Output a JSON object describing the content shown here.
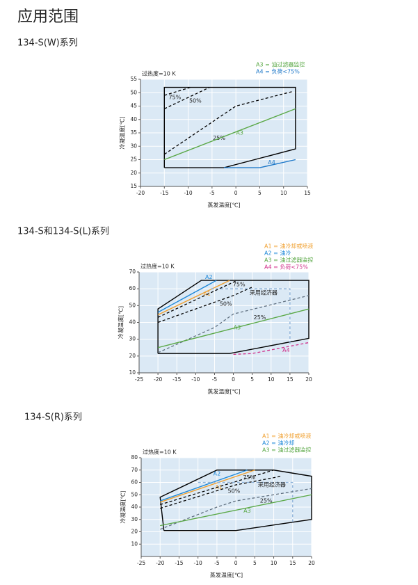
{
  "title": "应用范围",
  "chart_data": [
    {
      "type": "line",
      "title": "134-S(W)系列",
      "annotation": "过热度=10 K",
      "xlabel": "蒸发温度[℃]",
      "ylabel": "冷凝温度[℃]",
      "xlim": [
        -20,
        15
      ],
      "xticks": [
        -20,
        -15,
        -10,
        -5,
        0,
        5,
        10,
        15
      ],
      "ylim": [
        15,
        55
      ],
      "yticks": [
        15,
        20,
        25,
        30,
        35,
        40,
        45,
        50,
        55
      ],
      "grid": true,
      "series": [
        {
          "color": "#000000",
          "x": [
            -15,
            -15,
            12.5,
            12.5,
            -2.5,
            -15
          ],
          "values": [
            22,
            52,
            52,
            29,
            22,
            22
          ]
        },
        {
          "color": "#000000",
          "dash": true,
          "label": "75%",
          "x": [
            -15,
            -9.5
          ],
          "values": [
            49,
            52
          ]
        },
        {
          "color": "#000000",
          "dash": true,
          "label": "50%",
          "x": [
            -15,
            -5.5
          ],
          "values": [
            44,
            52
          ]
        },
        {
          "color": "#000000",
          "dash": true,
          "label": "25%",
          "x": [
            -15,
            0,
            12
          ],
          "values": [
            27,
            45,
            50.5
          ]
        },
        {
          "name": "A3 = 油过滤器监控",
          "label": "A3",
          "color": "#5aa846",
          "x": [
            -15,
            12.5
          ],
          "values": [
            25,
            44
          ]
        },
        {
          "name": "A4 = 负荷<75%",
          "label": "A4",
          "color": "#1e78c8",
          "x": [
            -2.5,
            5,
            12.5
          ],
          "values": [
            22,
            22,
            25
          ]
        }
      ]
    },
    {
      "type": "line",
      "title": "134-S和134-S(L)系列",
      "annotation": "过热度=10 K",
      "xlabel": "蒸发温度[℃]",
      "ylabel": "冷凝温度[℃]",
      "xlim": [
        -25,
        20
      ],
      "xticks": [
        -25,
        -20,
        -15,
        -10,
        -5,
        0,
        5,
        10,
        15,
        20
      ],
      "ylim": [
        10,
        70
      ],
      "yticks": [
        10,
        20,
        30,
        40,
        50,
        60,
        70
      ],
      "grid": true,
      "series": [
        {
          "color": "#000000",
          "x": [
            -20,
            -20,
            -8.5,
            20,
            20,
            -1,
            -20
          ],
          "values": [
            21.5,
            48,
            65,
            65,
            30.5,
            21.5,
            21.5
          ]
        },
        {
          "name": "A1 = 油冷却或喷液",
          "label": "A1",
          "color": "#f0a030",
          "x": [
            -20,
            -1
          ],
          "values": [
            44.5,
            65
          ]
        },
        {
          "name": "A2 = 油冷",
          "label": "A2",
          "color": "#1e88d8",
          "x": [
            -20,
            -4.5
          ],
          "values": [
            46,
            65
          ]
        },
        {
          "color": "#000000",
          "dash": true,
          "label": "75%",
          "x": [
            -20,
            1
          ],
          "values": [
            43,
            65
          ]
        },
        {
          "color": "#000000",
          "dash": true,
          "label": "50%",
          "x": [
            -20,
            0,
            5
          ],
          "values": [
            40,
            56,
            61
          ]
        },
        {
          "color": "#8ab0d8",
          "dash": true,
          "label": "采用经济器",
          "x": [
            -6,
            15,
            15
          ],
          "values": [
            60,
            60,
            27
          ]
        },
        {
          "color": "#607080",
          "dash": true,
          "label": "25%",
          "x": [
            -20,
            -5,
            0,
            20
          ],
          "values": [
            22,
            37,
            45,
            56
          ]
        },
        {
          "name": "A3 = 油过滤器监控",
          "label": "A3",
          "color": "#5aa846",
          "x": [
            -20,
            20
          ],
          "values": [
            25,
            48
          ]
        },
        {
          "name": "A4 = 负荷<75%",
          "label": "A4",
          "color": "#d0308a",
          "dash": true,
          "x": [
            0,
            5,
            20
          ],
          "values": [
            21,
            21.5,
            28
          ]
        }
      ]
    },
    {
      "type": "line",
      "title": "134-S(R)系列",
      "annotation": "过热度=10 K",
      "xlabel": "蒸发温度[℃]",
      "ylabel": "冷凝温度[℃]",
      "xlim": [
        -25,
        20
      ],
      "xticks": [
        -25,
        -20,
        -15,
        -10,
        -5,
        0,
        5,
        10,
        15,
        20
      ],
      "ylim": [
        0,
        80
      ],
      "yticks": [
        10,
        20,
        30,
        40,
        50,
        60,
        70,
        80
      ],
      "grid": true,
      "series": [
        {
          "color": "#000000",
          "x": [
            -19,
            -20,
            -5,
            10,
            20,
            20,
            0,
            -19
          ],
          "values": [
            21,
            48,
            70,
            70,
            65,
            30,
            21,
            21
          ]
        },
        {
          "name": "A1 = 油冷却或喷液",
          "label": "A1",
          "color": "#f0a030",
          "x": [
            -20,
            5
          ],
          "values": [
            44,
            70
          ]
        },
        {
          "name": "A2 = 油冷却",
          "label": "A2",
          "color": "#1e88d8",
          "x": [
            -20,
            3
          ],
          "values": [
            45,
            70
          ]
        },
        {
          "color": "#000000",
          "dash": true,
          "label": "75%",
          "x": [
            -20,
            10
          ],
          "values": [
            42,
            70
          ]
        },
        {
          "color": "#000000",
          "dash": true,
          "label": "50%",
          "x": [
            -20,
            0,
            12
          ],
          "values": [
            39,
            58,
            65
          ]
        },
        {
          "color": "#8ab0d8",
          "dash": true,
          "label": "采用经济器",
          "x": [
            -10,
            15,
            15
          ],
          "values": [
            60,
            60,
            27
          ]
        },
        {
          "color": "#607080",
          "dash": true,
          "label": "25%",
          "x": [
            -20,
            -5,
            0,
            20
          ],
          "values": [
            22,
            40,
            45,
            55
          ]
        },
        {
          "name": "A3 = 油过滤器监控",
          "label": "A3",
          "color": "#5aa846",
          "x": [
            -20,
            20
          ],
          "values": [
            25,
            50
          ]
        }
      ]
    }
  ]
}
